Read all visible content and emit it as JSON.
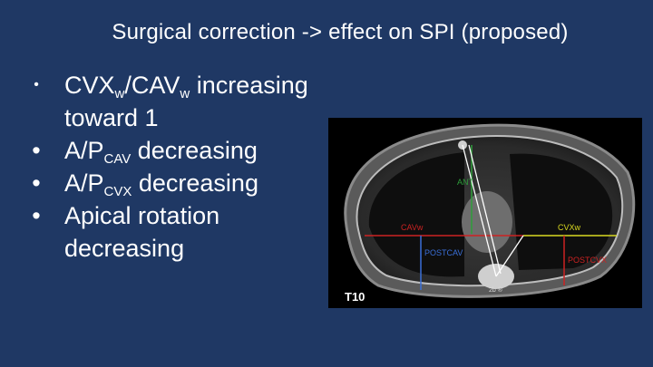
{
  "title": "Surgical correction -> effect on SPI (proposed)",
  "bullets": [
    {
      "main": "CVX",
      "sub": "w",
      "mid": "/CAV",
      "sub2": "w",
      "tail": " increasing toward 1"
    },
    {
      "main": "A/P",
      "sub": "CAV",
      "tail": " decreasing"
    },
    {
      "main": " A/P",
      "sub": "CVX",
      "tail": "  decreasing"
    },
    {
      "main": "Apical rotation decreasing"
    }
  ],
  "bullet_glyph": "•",
  "ct_image": {
    "labels": {
      "ant": "ANT",
      "cav_w": "CAVw",
      "cvx_w": "CVXw",
      "post_cav": "POSTCAV",
      "post_cvx": "POSTCVX",
      "level": "T10",
      "small": "2b ®"
    },
    "colors": {
      "ant_line": "#2e9e3a",
      "width_line": "#cc2222",
      "cvx_line": "#d8d820",
      "post_cav_line": "#3a6fd8",
      "post_cvx_line": "#cc2222",
      "angle_line": "#ffffff"
    }
  }
}
